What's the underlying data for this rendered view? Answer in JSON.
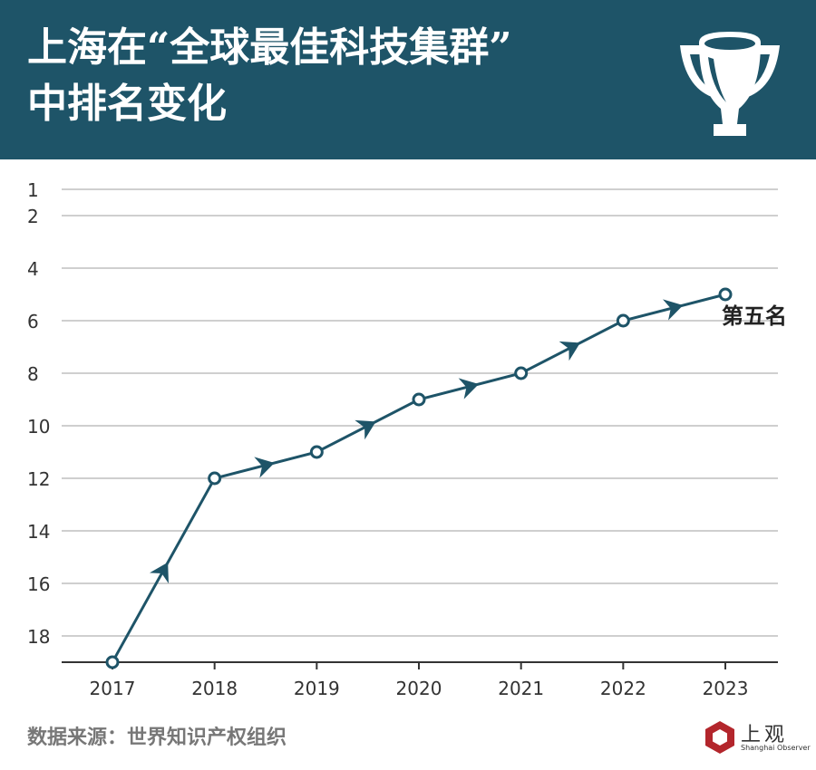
{
  "header": {
    "title_line1": "上海在“全球最佳科技集群”",
    "title_line2": "中排名变化",
    "icon": "trophy-icon",
    "background_color": "#1e5468"
  },
  "chart_data": {
    "type": "line",
    "title": "上海在“全球最佳科技集群”中排名变化",
    "x": [
      "2017",
      "2018",
      "2019",
      "2020",
      "2021",
      "2022",
      "2023"
    ],
    "series": [
      {
        "values": [
          19,
          12,
          11,
          9,
          8,
          6,
          5
        ],
        "color": "#1e5468"
      }
    ],
    "y_ticks": [
      1,
      2,
      4,
      6,
      8,
      10,
      12,
      14,
      16,
      18
    ],
    "ylim": [
      1,
      19
    ],
    "y_inverted": true,
    "grid": true,
    "annotation": {
      "x": "2023",
      "y": 5,
      "text": "第五名"
    }
  },
  "footer": {
    "source": "数据来源：世界知识产权组织",
    "logo_text": "上观",
    "logo_sub": "Shanghai Observer"
  }
}
